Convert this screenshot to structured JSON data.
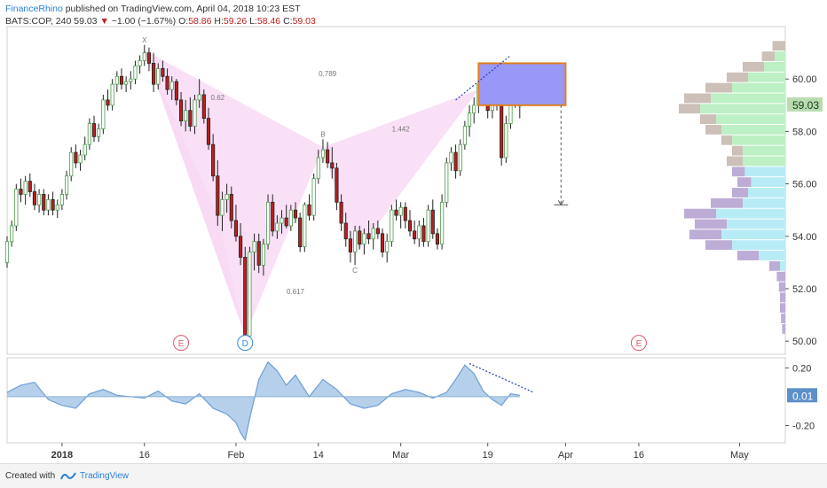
{
  "header": {
    "brand": "FinanceRhino",
    "published": " published on TradingView.com, April 04, 2018 10:23 EST",
    "symbol": "BATS:COP, 240",
    "last": "59.03",
    "change_arrow": "▼",
    "change": "−1.00 (−1.67%)",
    "ohlc_o_label": "O:",
    "ohlc_o": "58.86",
    "ohlc_h_label": "H:",
    "ohlc_h": "59.26",
    "ohlc_l_label": "L:",
    "ohlc_l": "58.46",
    "ohlc_c_label": "C:",
    "ohlc_c": "59.03"
  },
  "footer": {
    "created_with": "Created with",
    "brand": "TradingView"
  },
  "colors": {
    "up_candle": "#4c9a4c",
    "down_candle": "#b81f1f",
    "harmonic_fill": "#f8d8f4",
    "target_box": "#9898f6",
    "target_border": "#e08020",
    "osc_fill": "#a9c8e8",
    "osc_line": "#6d9ed6",
    "price_label_bg": "#b8dcb0",
    "osc_label_bg": "#5d8fc9"
  },
  "chart_data": [
    {
      "type": "candlestick",
      "title": "",
      "xlabel": "",
      "ylabel": "",
      "ylim": [
        49.5,
        62.0
      ],
      "yticks": [
        "60.00",
        "58.00",
        "56.00",
        "54.00",
        "52.00",
        "50.00"
      ],
      "ytick_values": [
        60,
        58,
        56,
        54,
        52,
        50
      ],
      "xticks": [
        "2018",
        "16",
        "Feb",
        "14",
        "Mar",
        "19",
        "Apr",
        "16",
        "May"
      ],
      "current_price": "59.03",
      "x_range": [
        0,
        170
      ],
      "xtick_positions": [
        12,
        30,
        50,
        68,
        86,
        105,
        122,
        138,
        160
      ],
      "candles": [
        [
          0,
          53.0,
          54.0,
          52.8,
          53.8
        ],
        [
          1,
          53.8,
          54.6,
          53.6,
          54.4
        ],
        [
          2,
          54.4,
          56.0,
          54.2,
          55.8
        ],
        [
          3,
          55.8,
          56.2,
          55.3,
          55.6
        ],
        [
          4,
          55.6,
          56.3,
          55.2,
          56.1
        ],
        [
          5,
          56.1,
          56.4,
          55.5,
          55.7
        ],
        [
          6,
          55.7,
          56.0,
          55.0,
          55.2
        ],
        [
          7,
          55.2,
          55.8,
          54.9,
          55.6
        ],
        [
          8,
          55.6,
          55.8,
          54.8,
          55.0
        ],
        [
          9,
          55.0,
          55.6,
          54.8,
          55.4
        ],
        [
          10,
          55.4,
          55.7,
          54.8,
          55.0
        ],
        [
          11,
          55.0,
          55.4,
          54.7,
          55.2
        ],
        [
          12,
          55.2,
          55.8,
          55.0,
          55.6
        ],
        [
          13,
          55.6,
          56.5,
          55.4,
          56.3
        ],
        [
          14,
          56.3,
          57.4,
          56.1,
          57.2
        ],
        [
          15,
          57.2,
          57.5,
          56.6,
          56.8
        ],
        [
          16,
          56.8,
          57.3,
          56.5,
          57.1
        ],
        [
          17,
          57.1,
          57.8,
          56.9,
          57.5
        ],
        [
          18,
          57.5,
          58.5,
          57.3,
          58.3
        ],
        [
          19,
          58.3,
          58.6,
          57.6,
          57.8
        ],
        [
          20,
          57.8,
          58.3,
          57.6,
          58.1
        ],
        [
          21,
          58.1,
          59.4,
          57.9,
          59.2
        ],
        [
          22,
          59.2,
          59.6,
          58.8,
          59.0
        ],
        [
          23,
          59.0,
          60.0,
          58.8,
          59.8
        ],
        [
          24,
          59.8,
          60.3,
          59.5,
          60.1
        ],
        [
          25,
          60.1,
          60.4,
          59.6,
          59.8
        ],
        [
          26,
          59.8,
          60.1,
          59.5,
          59.9
        ],
        [
          27,
          59.9,
          60.3,
          59.6,
          60.0
        ],
        [
          28,
          60.0,
          60.7,
          59.8,
          60.5
        ],
        [
          29,
          60.5,
          60.9,
          60.2,
          60.7
        ],
        [
          30,
          60.7,
          61.3,
          60.5,
          61.0
        ],
        [
          31,
          61.0,
          61.2,
          60.3,
          60.6
        ],
        [
          32,
          60.6,
          61.0,
          59.5,
          59.8
        ],
        [
          33,
          59.8,
          60.6,
          59.6,
          60.4
        ],
        [
          34,
          60.4,
          60.7,
          59.9,
          60.1
        ],
        [
          35,
          60.1,
          60.4,
          59.4,
          59.6
        ],
        [
          36,
          59.6,
          60.1,
          59.2,
          59.9
        ],
        [
          37,
          59.9,
          60.0,
          59.0,
          59.2
        ],
        [
          38,
          59.2,
          59.5,
          58.2,
          58.4
        ],
        [
          39,
          58.4,
          59.2,
          58.0,
          58.8
        ],
        [
          40,
          58.8,
          59.3,
          58.0,
          58.2
        ],
        [
          41,
          58.2,
          59.4,
          57.9,
          59.2
        ],
        [
          42,
          59.2,
          60.0,
          58.9,
          59.4
        ],
        [
          43,
          59.4,
          59.6,
          58.3,
          58.5
        ],
        [
          44,
          58.5,
          58.9,
          57.3,
          57.5
        ],
        [
          45,
          57.5,
          57.9,
          56.1,
          56.3
        ],
        [
          46,
          56.3,
          56.9,
          54.4,
          54.8
        ],
        [
          47,
          54.8,
          55.7,
          54.2,
          55.4
        ],
        [
          48,
          55.4,
          56.0,
          54.9,
          55.6
        ],
        [
          49,
          55.6,
          55.9,
          54.3,
          54.6
        ],
        [
          50,
          54.6,
          55.2,
          53.8,
          54.0
        ],
        [
          51,
          54.0,
          54.5,
          52.9,
          53.2
        ],
        [
          52,
          53.2,
          53.6,
          49.9,
          50.2
        ],
        [
          53,
          50.2,
          53.6,
          50.0,
          53.4
        ],
        [
          54,
          53.4,
          54.1,
          52.7,
          53.8
        ],
        [
          55,
          53.8,
          54.1,
          52.6,
          52.9
        ],
        [
          56,
          52.9,
          53.9,
          52.5,
          53.7
        ],
        [
          57,
          53.7,
          55.6,
          53.5,
          55.3
        ],
        [
          58,
          55.3,
          55.6,
          54.0,
          54.2
        ],
        [
          59,
          54.2,
          54.8,
          53.9,
          54.5
        ],
        [
          60,
          54.5,
          55.0,
          54.1,
          54.7
        ],
        [
          61,
          54.7,
          55.2,
          54.3,
          54.4
        ],
        [
          62,
          54.4,
          55.2,
          54.2,
          55.0
        ],
        [
          63,
          55.0,
          55.3,
          54.5,
          54.7
        ],
        [
          64,
          54.7,
          54.9,
          53.4,
          53.6
        ],
        [
          65,
          53.6,
          55.3,
          53.4,
          55.2
        ],
        [
          66,
          55.2,
          55.6,
          54.6,
          54.8
        ],
        [
          67,
          54.8,
          56.4,
          54.6,
          56.2
        ],
        [
          68,
          56.2,
          57.3,
          56.0,
          57.0
        ],
        [
          69,
          57.0,
          57.7,
          56.8,
          57.3
        ],
        [
          70,
          57.3,
          57.6,
          56.6,
          56.8
        ],
        [
          71,
          56.8,
          57.4,
          56.2,
          56.6
        ],
        [
          72,
          56.6,
          56.8,
          55.0,
          55.3
        ],
        [
          73,
          55.3,
          55.6,
          54.2,
          54.5
        ],
        [
          74,
          54.5,
          54.9,
          53.6,
          53.9
        ],
        [
          75,
          53.9,
          54.2,
          53.0,
          53.4
        ],
        [
          76,
          53.4,
          54.4,
          52.9,
          54.2
        ],
        [
          77,
          54.2,
          54.4,
          53.5,
          53.7
        ],
        [
          78,
          53.7,
          54.3,
          53.3,
          54.1
        ],
        [
          79,
          54.1,
          54.6,
          53.7,
          53.9
        ],
        [
          80,
          53.9,
          54.5,
          53.5,
          54.3
        ],
        [
          81,
          54.3,
          54.6,
          53.9,
          54.1
        ],
        [
          82,
          54.1,
          54.3,
          53.2,
          53.4
        ],
        [
          83,
          53.4,
          54.1,
          53.0,
          53.8
        ],
        [
          84,
          53.8,
          55.2,
          53.6,
          55.0
        ],
        [
          85,
          55.0,
          55.4,
          54.6,
          54.8
        ],
        [
          86,
          54.8,
          55.3,
          54.3,
          55.1
        ],
        [
          87,
          55.1,
          55.3,
          54.3,
          54.6
        ],
        [
          88,
          54.6,
          55.0,
          54.0,
          54.2
        ],
        [
          89,
          54.2,
          54.6,
          53.7,
          53.9
        ],
        [
          90,
          53.9,
          54.6,
          53.6,
          54.4
        ],
        [
          91,
          54.4,
          54.7,
          53.6,
          53.8
        ],
        [
          92,
          53.8,
          55.2,
          53.6,
          55.0
        ],
        [
          93,
          55.0,
          55.4,
          53.9,
          54.1
        ],
        [
          94,
          54.1,
          54.3,
          53.5,
          53.7
        ],
        [
          95,
          53.7,
          55.6,
          53.5,
          55.3
        ],
        [
          96,
          55.3,
          57.0,
          55.1,
          56.8
        ],
        [
          97,
          56.8,
          57.4,
          56.5,
          57.2
        ],
        [
          98,
          57.2,
          57.5,
          56.2,
          56.5
        ],
        [
          99,
          56.5,
          57.7,
          56.3,
          57.5
        ],
        [
          100,
          57.5,
          58.4,
          57.3,
          58.2
        ],
        [
          101,
          58.2,
          59.0,
          57.8,
          58.7
        ],
        [
          102,
          58.7,
          59.3,
          58.3,
          59.0
        ],
        [
          103,
          59.0,
          60.0,
          58.7,
          59.8
        ],
        [
          104,
          59.8,
          60.2,
          59.0,
          59.3
        ],
        [
          105,
          59.3,
          59.5,
          58.5,
          58.8
        ],
        [
          106,
          58.8,
          59.7,
          58.5,
          59.5
        ],
        [
          107,
          59.5,
          59.9,
          58.8,
          59.0
        ],
        [
          108,
          59.0,
          59.4,
          56.7,
          57.0
        ],
        [
          109,
          57.0,
          58.6,
          56.8,
          58.3
        ],
        [
          110,
          58.3,
          60.1,
          58.1,
          59.8
        ],
        [
          111,
          59.8,
          60.2,
          58.9,
          59.0
        ],
        [
          112,
          59.0,
          59.3,
          58.5,
          59.0
        ]
      ],
      "annotations": [
        {
          "label": "X",
          "x": 30,
          "y": 61.4
        },
        {
          "label": "B",
          "x": 69,
          "y": 57.8
        },
        {
          "label": "C",
          "x": 76,
          "y": 52.6
        },
        {
          "label": "D",
          "x": 52,
          "y": 49.8,
          "circled": true
        },
        {
          "label": "0.789",
          "x": 70,
          "y": 60.1
        },
        {
          "label": "0.62",
          "x": 46,
          "y": 59.2
        },
        {
          "label": "1.442",
          "x": 86,
          "y": 58.0
        },
        {
          "label": "0.617",
          "x": 63,
          "y": 51.8
        },
        {
          "label": "E",
          "x": 38,
          "y": 49.8,
          "circled": true
        },
        {
          "label": "E",
          "x": 138,
          "y": 49.8,
          "circled": true
        }
      ],
      "harmonic_pattern": {
        "upper": [
          [
            30,
            61.1
          ],
          [
            52,
            50.2
          ],
          [
            69,
            57.4
          ],
          [
            76,
            53.3
          ],
          [
            103,
            59.6
          ]
        ],
        "lower_left": [
          [
            30,
            61.1
          ],
          [
            46,
            54.8
          ],
          [
            52,
            50.2
          ]
        ],
        "lower_right": [
          [
            69,
            57.4
          ],
          [
            103,
            59.6
          ],
          [
            76,
            53.3
          ]
        ]
      },
      "target_zone": {
        "x0": 103,
        "x1": 122,
        "y0": 59.0,
        "y1": 60.6
      },
      "projection": {
        "x": 121,
        "y_from": 59.0,
        "y_to": 55.2
      },
      "trendline": {
        "x0": 98,
        "y0": 59.2,
        "x1": 110,
        "y1": 60.9
      },
      "volume_profile": [
        [
          61.25,
          0.12,
          0.0
        ],
        [
          60.85,
          0.22,
          0.1
        ],
        [
          60.45,
          0.4,
          0.2
        ],
        [
          60.05,
          0.55,
          0.35
        ],
        [
          59.65,
          0.75,
          0.5
        ],
        [
          59.25,
          0.95,
          0.7
        ],
        [
          58.85,
          1.0,
          0.8
        ],
        [
          58.45,
          0.8,
          0.65
        ],
        [
          58.05,
          0.75,
          0.6
        ],
        [
          57.65,
          0.6,
          0.5
        ],
        [
          57.25,
          0.5,
          0.4
        ],
        [
          56.85,
          0.55,
          0.4
        ],
        [
          56.45,
          0.5,
          0.38
        ],
        [
          56.05,
          0.45,
          0.32
        ],
        [
          55.65,
          0.5,
          0.35
        ],
        [
          55.25,
          0.7,
          0.4
        ],
        [
          54.85,
          0.95,
          0.65
        ],
        [
          54.45,
          0.85,
          0.55
        ],
        [
          54.05,
          0.9,
          0.6
        ],
        [
          53.65,
          0.75,
          0.5
        ],
        [
          53.25,
          0.45,
          0.25
        ],
        [
          52.85,
          0.15,
          0.05
        ],
        [
          52.45,
          0.08,
          0.0
        ],
        [
          52.05,
          0.06,
          0.0
        ],
        [
          51.65,
          0.05,
          0.0
        ],
        [
          51.25,
          0.05,
          0.0
        ],
        [
          50.85,
          0.04,
          0.0
        ],
        [
          50.45,
          0.03,
          0.0
        ]
      ],
      "volume_profile_split": 56.5
    },
    {
      "type": "area",
      "title": "",
      "xlabel": "",
      "ylabel": "",
      "ylim": [
        -0.32,
        0.27
      ],
      "yticks": [
        "0.20",
        "-0.20"
      ],
      "ytick_values": [
        0.2,
        -0.2
      ],
      "current_value": "0.01",
      "x": [
        0,
        3,
        6,
        9,
        12,
        15,
        18,
        21,
        24,
        27,
        30,
        33,
        36,
        39,
        42,
        45,
        48,
        50,
        51,
        52,
        53,
        55,
        57,
        59,
        61,
        63,
        66,
        69,
        72,
        75,
        78,
        81,
        84,
        87,
        90,
        93,
        96,
        98,
        100,
        102,
        104,
        106,
        108,
        110,
        112
      ],
      "values": [
        0.03,
        0.08,
        0.1,
        -0.02,
        -0.06,
        -0.08,
        0.02,
        0.05,
        0.01,
        0.0,
        -0.01,
        0.04,
        -0.03,
        -0.05,
        0.02,
        -0.08,
        -0.12,
        -0.18,
        -0.25,
        -0.3,
        -0.15,
        0.12,
        0.24,
        0.18,
        0.08,
        0.15,
        0.0,
        0.12,
        0.05,
        -0.05,
        -0.08,
        -0.06,
        0.02,
        0.05,
        0.03,
        -0.01,
        0.03,
        0.12,
        0.22,
        0.16,
        0.04,
        -0.02,
        -0.06,
        0.02,
        0.01
      ],
      "trendline": {
        "x0": 101,
        "y0": 0.23,
        "x1": 115,
        "y1": 0.03
      }
    }
  ]
}
